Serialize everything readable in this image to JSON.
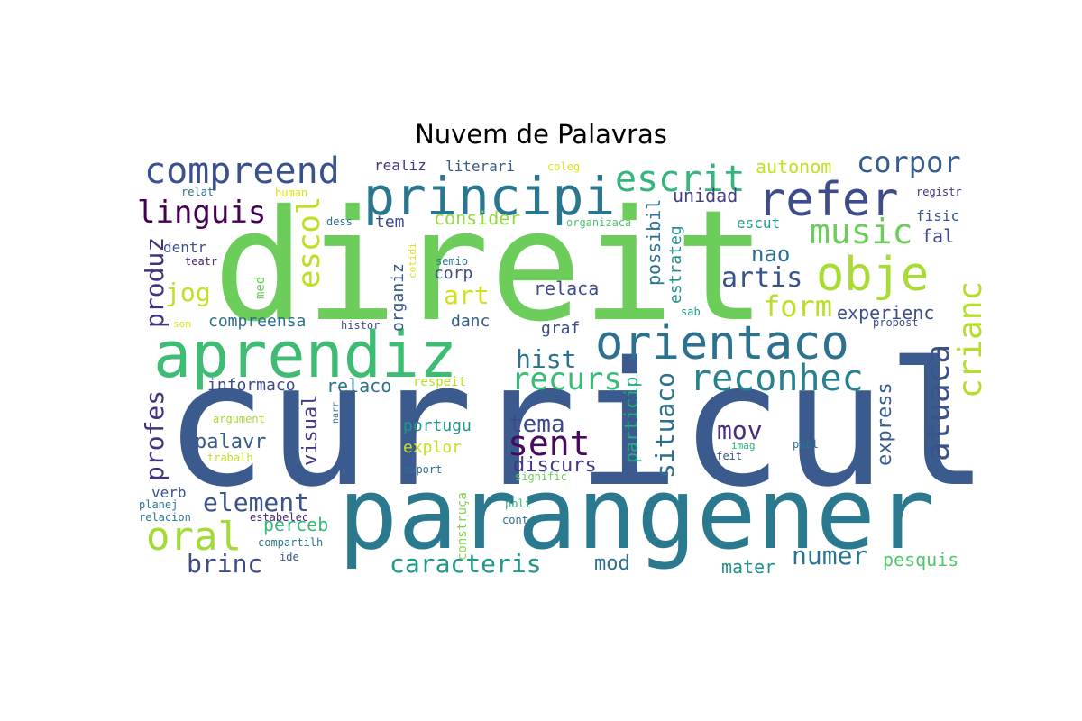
{
  "title": "Nuvem de Palavras",
  "word_cloud": {
    "colors": {
      "dark_purple": "#482173",
      "indigo": "#433e85",
      "blue": "#38588c",
      "steel": "#2d708e",
      "teal": "#25858e",
      "teal_green": "#1e9b8a",
      "green": "#2ab07f",
      "light_green": "#52c569",
      "lime": "#86d549",
      "yellow_green": "#c2df23",
      "yellow": "#e7e419"
    },
    "words": [
      {
        "text": "direit",
        "color": "#6ccd5a"
      },
      {
        "text": "curricul",
        "color": "#3b5b8e"
      },
      {
        "text": "parangener",
        "color": "#2a798e"
      },
      {
        "text": "aprendiz",
        "color": "#3fbc73"
      },
      {
        "text": "principi",
        "color": "#2a768e"
      },
      {
        "text": "orientaco",
        "color": "#2c718e"
      },
      {
        "text": "refer",
        "color": "#3e4c8a"
      },
      {
        "text": "obje",
        "color": "#a8db34"
      },
      {
        "text": "compreend",
        "color": "#3b518b"
      },
      {
        "text": "escrit",
        "color": "#32b67a"
      },
      {
        "text": "reconhec",
        "color": "#26828e"
      },
      {
        "text": "music",
        "color": "#6ccd5a"
      },
      {
        "text": "oral",
        "color": "#a2da37"
      },
      {
        "text": "corpor",
        "color": "#365d8d"
      },
      {
        "text": "linguis",
        "color": "#440154"
      },
      {
        "text": "atuaca",
        "color": "#3b528b"
      },
      {
        "text": "crianc",
        "color": "#b5de2b"
      },
      {
        "text": "sent",
        "color": "#460b5e"
      },
      {
        "text": "recurs",
        "color": "#3bbb75"
      },
      {
        "text": "escol",
        "color": "#bddf26"
      },
      {
        "text": "artis",
        "color": "#3a538b"
      },
      {
        "text": "form",
        "color": "#b8de29"
      },
      {
        "text": "element",
        "color": "#3b528b"
      },
      {
        "text": "caracteris",
        "color": "#1f9a8a"
      },
      {
        "text": "numer",
        "color": "#2b748e"
      },
      {
        "text": "produz",
        "color": "#46317e"
      },
      {
        "text": "profes",
        "color": "#46307e"
      },
      {
        "text": "brinc",
        "color": "#3e4a89"
      },
      {
        "text": "hist",
        "color": "#2c718e"
      },
      {
        "text": "situaco",
        "color": "#2d708e"
      },
      {
        "text": "express",
        "color": "#38598c"
      },
      {
        "text": "tema",
        "color": "#3e4989"
      },
      {
        "text": "mov",
        "color": "#472f7d"
      },
      {
        "text": "jog",
        "color": "#c2df23"
      },
      {
        "text": "art",
        "color": "#d0e11c"
      },
      {
        "text": "nao",
        "color": "#2e6e8e"
      },
      {
        "text": "autonom",
        "color": "#c5e021"
      },
      {
        "text": "palavr",
        "color": "#375b8d"
      },
      {
        "text": "visual",
        "color": "#443983"
      },
      {
        "text": "discurs",
        "color": "#453882"
      },
      {
        "text": "particip",
        "color": "#26ad81"
      },
      {
        "text": "mod",
        "color": "#2d718e"
      },
      {
        "text": "mater",
        "color": "#20928c"
      },
      {
        "text": "pesquis",
        "color": "#54c568"
      },
      {
        "text": "experienc",
        "color": "#3d4e8a"
      },
      {
        "text": "relaca",
        "color": "#3e4a89"
      },
      {
        "text": "unidad",
        "color": "#433e85"
      },
      {
        "text": "possibil",
        "color": "#2c718e"
      },
      {
        "text": "estrateg",
        "color": "#20928c"
      },
      {
        "text": "consider",
        "color": "#94d840"
      },
      {
        "text": "perceb",
        "color": "#38b977"
      },
      {
        "text": "relaco",
        "color": "#2b758e"
      },
      {
        "text": "informaco",
        "color": "#3e4a89"
      },
      {
        "text": "compreensa",
        "color": "#2d708e"
      },
      {
        "text": "organiz",
        "color": "#38598c"
      },
      {
        "text": "portugu",
        "color": "#1f968b"
      },
      {
        "text": "explor",
        "color": "#c8e020"
      },
      {
        "text": "danc",
        "color": "#365c8d"
      },
      {
        "text": "corp",
        "color": "#3e4a89"
      },
      {
        "text": "graf",
        "color": "#3e4a89"
      },
      {
        "text": "tem",
        "color": "#3e4989"
      },
      {
        "text": "escut",
        "color": "#1f9e89"
      },
      {
        "text": "fal",
        "color": "#3e4c8a"
      },
      {
        "text": "fisic",
        "color": "#3a548c"
      },
      {
        "text": "verb",
        "color": "#3b518b"
      },
      {
        "text": "realiz",
        "color": "#46327e"
      },
      {
        "text": "literari",
        "color": "#38598c"
      },
      {
        "text": "dentr",
        "color": "#3b528b"
      },
      {
        "text": "med",
        "color": "#6ccd5a"
      },
      {
        "text": "construça",
        "color": "#86d549"
      },
      {
        "text": "respeit",
        "color": "#bade28"
      },
      {
        "text": "coleg",
        "color": "#dde318"
      },
      {
        "text": "human",
        "color": "#dde318"
      },
      {
        "text": "relat",
        "color": "#2c728e"
      },
      {
        "text": "dess",
        "color": "#2c718e"
      },
      {
        "text": "organizaca",
        "color": "#50c46a"
      },
      {
        "text": "registr",
        "color": "#472f7d"
      },
      {
        "text": "teatr",
        "color": "#482475"
      },
      {
        "text": "cotidi",
        "color": "#e0e318"
      },
      {
        "text": "semio",
        "color": "#2a788e"
      },
      {
        "text": "sab",
        "color": "#1f9a8a"
      },
      {
        "text": "som",
        "color": "#dde318"
      },
      {
        "text": "histor",
        "color": "#3e4a89"
      },
      {
        "text": "propost",
        "color": "#3e4a89"
      },
      {
        "text": "argument",
        "color": "#a2da37"
      },
      {
        "text": "narr",
        "color": "#2d708e"
      },
      {
        "text": "imag",
        "color": "#29af7f"
      },
      {
        "text": "publ",
        "color": "#2c728e"
      },
      {
        "text": "efeit",
        "color": "#3b528b"
      },
      {
        "text": "trabalh",
        "color": "#c2df23"
      },
      {
        "text": "suport",
        "color": "#2d708e"
      },
      {
        "text": "signific",
        "color": "#6ccd5a"
      },
      {
        "text": "planej",
        "color": "#2c728e"
      },
      {
        "text": "poli",
        "color": "#32b67a"
      },
      {
        "text": "relacion",
        "color": "#2a788e"
      },
      {
        "text": "estabelec",
        "color": "#482475"
      },
      {
        "text": "cont",
        "color": "#2d708e"
      },
      {
        "text": "compartilh",
        "color": "#2a788e"
      },
      {
        "text": "ide",
        "color": "#3b528b"
      }
    ]
  }
}
